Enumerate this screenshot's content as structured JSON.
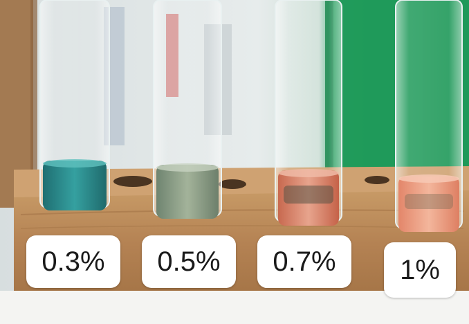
{
  "labels": [
    "0.3%",
    "0.5%",
    "0.7%",
    "1%"
  ],
  "colors": {
    "tube_1_liquid": "#2a8a8a",
    "tube_2_liquid": "#8c9f88",
    "tube_3_liquid": "#d9876e",
    "tube_4_liquid": "#e89a7a",
    "rack_wood": "#b98a57",
    "background_green": "#1f9a5a"
  }
}
